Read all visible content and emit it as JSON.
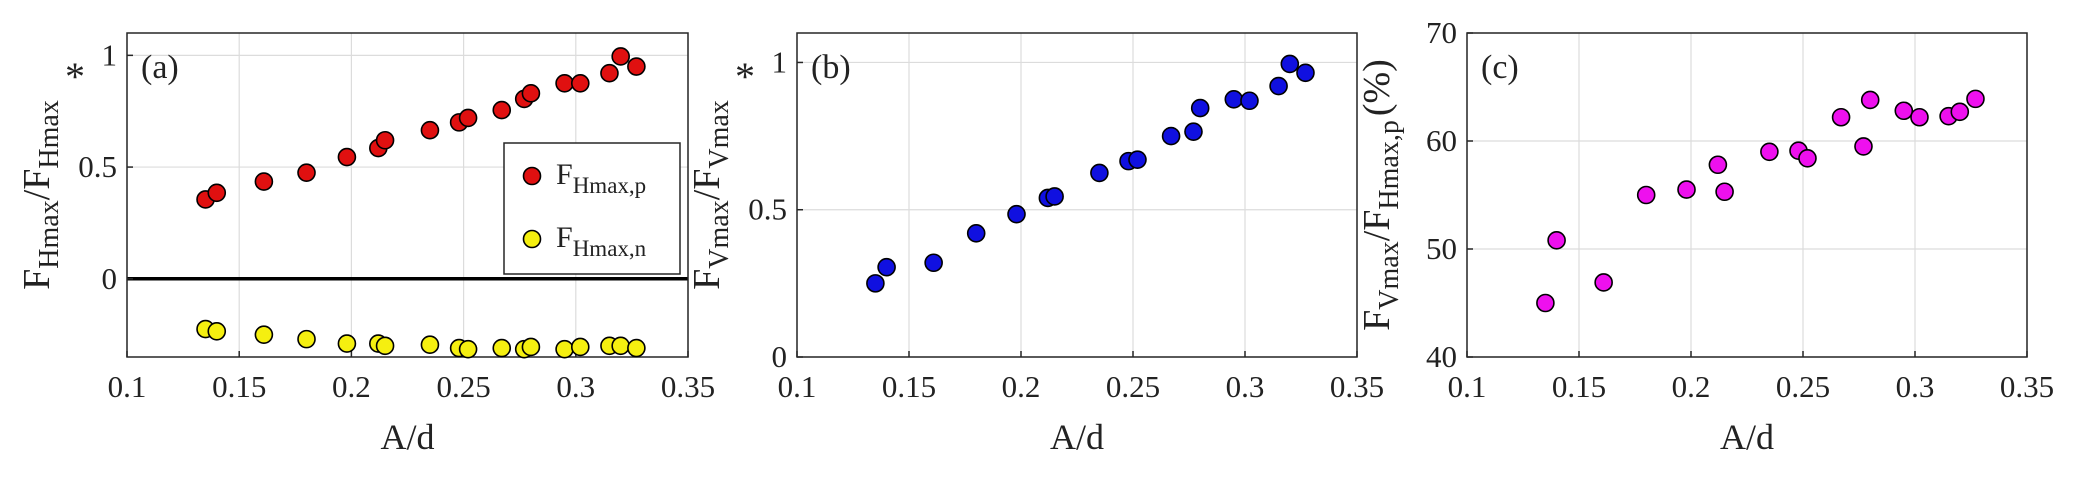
{
  "chart_data": [
    {
      "type": "scatter",
      "panel_label": "(a)",
      "xlabel": "A/d",
      "ylabel_parts": {
        "f1": "F",
        "s1": "Hmax",
        "mid": "/F",
        "s2": "Hmax"
      },
      "ylabel_star": "*",
      "xlim": [
        0.1,
        0.35
      ],
      "ylim": [
        -0.35,
        1.1
      ],
      "xticks": [
        0.1,
        0.15,
        0.2,
        0.25,
        0.3,
        0.35
      ],
      "xtick_labels": [
        "0.1",
        "0.15",
        "0.2",
        "0.25",
        "0.3",
        "0.35"
      ],
      "yticks": [
        0,
        0.5,
        1
      ],
      "ytick_labels": [
        "0",
        "0.5",
        "1"
      ],
      "grid": true,
      "zero_line": true,
      "legend_position": "right-middle",
      "series": [
        {
          "name_main": "F",
          "name_sub": "Hmax,p",
          "color": "#e01010",
          "x": [
            0.135,
            0.14,
            0.161,
            0.18,
            0.198,
            0.212,
            0.215,
            0.235,
            0.248,
            0.252,
            0.267,
            0.277,
            0.28,
            0.295,
            0.302,
            0.315,
            0.32,
            0.327
          ],
          "y": [
            0.355,
            0.385,
            0.435,
            0.475,
            0.545,
            0.585,
            0.62,
            0.665,
            0.7,
            0.72,
            0.755,
            0.805,
            0.83,
            0.875,
            0.875,
            0.92,
            0.995,
            0.95
          ]
        },
        {
          "name_main": "F",
          "name_sub": "Hmax,n",
          "color": "#f5ef10",
          "x": [
            0.135,
            0.14,
            0.161,
            0.18,
            0.198,
            0.212,
            0.215,
            0.235,
            0.248,
            0.252,
            0.267,
            0.277,
            0.28,
            0.295,
            0.302,
            0.315,
            0.32,
            0.327
          ],
          "y": [
            -0.225,
            -0.235,
            -0.25,
            -0.27,
            -0.29,
            -0.29,
            -0.3,
            -0.295,
            -0.31,
            -0.315,
            -0.31,
            -0.315,
            -0.305,
            -0.315,
            -0.305,
            -0.3,
            -0.3,
            -0.31
          ]
        }
      ]
    },
    {
      "type": "scatter",
      "panel_label": "(b)",
      "xlabel": "A/d",
      "ylabel_parts": {
        "f1": "F",
        "s1": "Vmax",
        "mid": "/F",
        "s2": "Vmax"
      },
      "ylabel_star": "*",
      "xlim": [
        0.1,
        0.35
      ],
      "ylim": [
        0,
        1.1
      ],
      "xticks": [
        0.1,
        0.15,
        0.2,
        0.25,
        0.3,
        0.35
      ],
      "xtick_labels": [
        "0.1",
        "0.15",
        "0.2",
        "0.25",
        "0.3",
        "0.35"
      ],
      "yticks": [
        0,
        0.5,
        1
      ],
      "ytick_labels": [
        "0",
        "0.5",
        "1"
      ],
      "grid": true,
      "series": [
        {
          "color": "#1010e0",
          "x": [
            0.135,
            0.14,
            0.161,
            0.18,
            0.198,
            0.212,
            0.215,
            0.235,
            0.248,
            0.252,
            0.267,
            0.277,
            0.28,
            0.295,
            0.302,
            0.315,
            0.32,
            0.327
          ],
          "y": [
            0.25,
            0.305,
            0.32,
            0.42,
            0.485,
            0.54,
            0.545,
            0.625,
            0.665,
            0.67,
            0.75,
            0.765,
            0.845,
            0.875,
            0.87,
            0.92,
            0.995,
            0.965
          ]
        }
      ]
    },
    {
      "type": "scatter",
      "panel_label": "(c)",
      "xlabel": "A/d",
      "ylabel_parts": {
        "f1": "F",
        "s1": "Vmax",
        "mid": "/F",
        "s2": "Hmax,p"
      },
      "ylabel_suffix": "(%)",
      "xlim": [
        0.1,
        0.35
      ],
      "ylim": [
        40,
        70
      ],
      "xticks": [
        0.1,
        0.15,
        0.2,
        0.25,
        0.3,
        0.35
      ],
      "xtick_labels": [
        "0.1",
        "0.15",
        "0.2",
        "0.25",
        "0.3",
        "0.35"
      ],
      "yticks": [
        40,
        50,
        60,
        70
      ],
      "ytick_labels": [
        "40",
        "50",
        "60",
        "70"
      ],
      "grid": true,
      "series": [
        {
          "color": "#ee10ee",
          "x": [
            0.135,
            0.14,
            0.161,
            0.18,
            0.198,
            0.212,
            0.215,
            0.235,
            0.248,
            0.252,
            0.267,
            0.277,
            0.28,
            0.295,
            0.302,
            0.315,
            0.32,
            0.327
          ],
          "y": [
            45,
            50.8,
            46.9,
            55,
            55.5,
            57.8,
            55.3,
            59,
            59.1,
            58.4,
            62.2,
            59.5,
            63.8,
            62.8,
            62.2,
            62.3,
            62.7,
            63.9
          ]
        }
      ]
    }
  ]
}
